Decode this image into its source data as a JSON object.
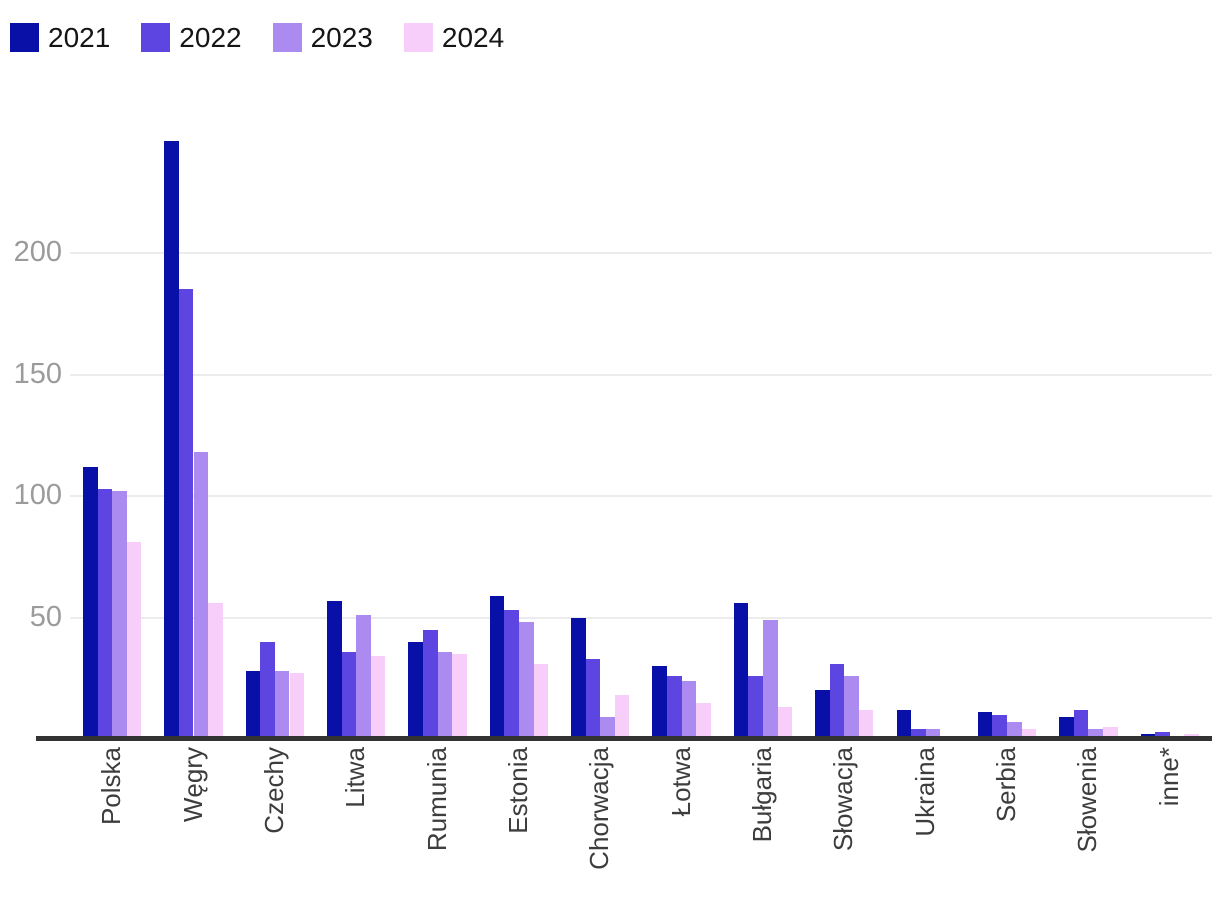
{
  "chart_data": {
    "type": "bar",
    "title": "",
    "categories": [
      "Polska",
      "Węgry",
      "Czechy",
      "Litwa",
      "Rumunia",
      "Estonia",
      "Chorwacja",
      "Łotwa",
      "Bułgaria",
      "Słowacja",
      "Ukraina",
      "Serbia",
      "Słowenia",
      "inne*"
    ],
    "series": [
      {
        "name": "2021",
        "color": "#0910A8",
        "values": [
          112,
          246,
          28,
          57,
          40,
          59,
          50,
          30,
          56,
          20,
          12,
          11,
          9,
          2
        ]
      },
      {
        "name": "2022",
        "color": "#5C45E0",
        "values": [
          103,
          185,
          40,
          36,
          45,
          53,
          33,
          26,
          26,
          31,
          4,
          10,
          12,
          3
        ]
      },
      {
        "name": "2023",
        "color": "#AB8BF0",
        "values": [
          102,
          118,
          28,
          51,
          36,
          48,
          9,
          24,
          49,
          26,
          4,
          7,
          4,
          1
        ]
      },
      {
        "name": "2024",
        "color": "#F6CEF9",
        "values": [
          81,
          56,
          27,
          34,
          35,
          31,
          18,
          15,
          13,
          12,
          1,
          4,
          5,
          2
        ]
      }
    ],
    "xlabel": "",
    "ylabel": "",
    "yticks": [
      50,
      100,
      150,
      200
    ],
    "ylim": [
      0,
      263
    ],
    "grid": "horizontal",
    "legend_position": "top-left",
    "x_tick_rotation": -90,
    "axis_line_color": "#333333",
    "gridline_color": "#ececec",
    "ytick_color": "#9b9b9b",
    "xtick_color": "#3d3d3d"
  }
}
